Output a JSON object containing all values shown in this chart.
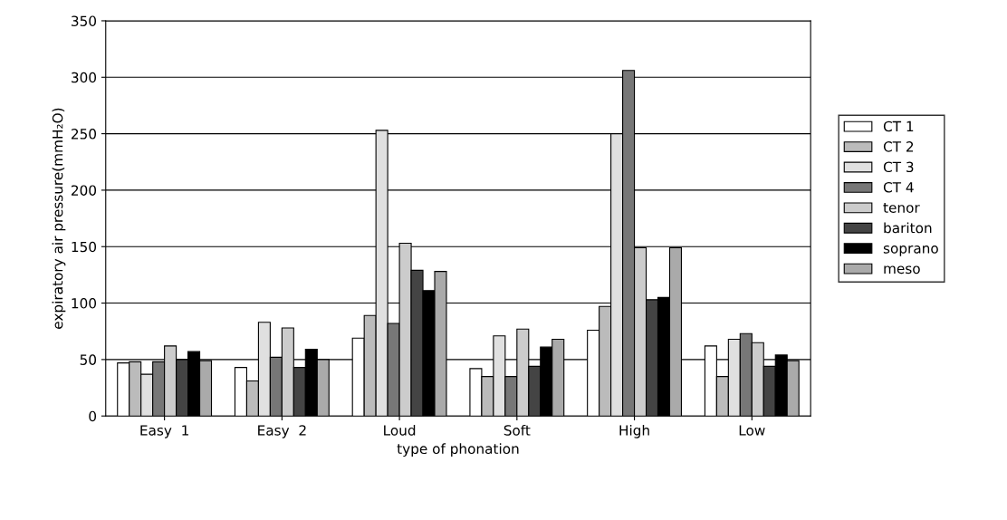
{
  "chart_data": {
    "type": "bar",
    "xlabel": "type of phonation",
    "ylabel": "expiratory air pressure(mmH₂O)",
    "categories": [
      "Easy  1",
      "Easy  2",
      "Loud",
      "Soft",
      "High",
      "Low"
    ],
    "series": [
      {
        "name": "CT 1",
        "color": "#ffffff",
        "values": [
          47,
          43,
          69,
          42,
          76,
          62
        ]
      },
      {
        "name": "CT 2",
        "color": "#bbbbbb",
        "values": [
          48,
          31,
          89,
          35,
          97,
          35
        ]
      },
      {
        "name": "CT 3",
        "color": "#e0e0e0",
        "values": [
          37,
          83,
          253,
          71,
          250,
          68
        ]
      },
      {
        "name": "CT 4",
        "color": "#777777",
        "values": [
          48,
          52,
          82,
          35,
          306,
          73
        ]
      },
      {
        "name": "tenor",
        "color": "#cccccc",
        "values": [
          62,
          78,
          153,
          77,
          149,
          65
        ]
      },
      {
        "name": "bariton",
        "color": "#444444",
        "values": [
          50,
          43,
          129,
          44,
          103,
          44
        ]
      },
      {
        "name": "soprano",
        "color": "#000000",
        "values": [
          57,
          59,
          111,
          61,
          105,
          54
        ]
      },
      {
        "name": "meso",
        "color": "#aaaaaa",
        "values": [
          49,
          50,
          128,
          68,
          149,
          49
        ]
      }
    ],
    "ylim": [
      0,
      350
    ],
    "yticks": [
      0,
      50,
      100,
      150,
      200,
      250,
      300,
      350
    ],
    "grid": "y",
    "legend": "right"
  }
}
